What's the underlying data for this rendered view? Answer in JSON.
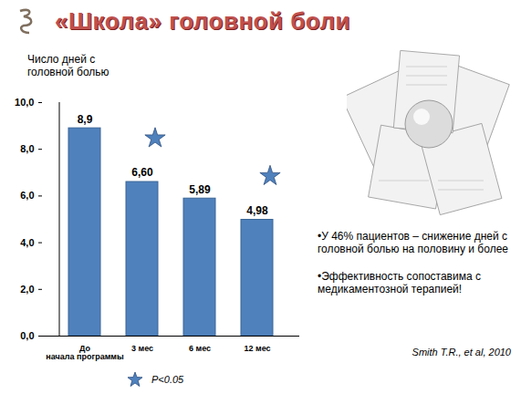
{
  "chart_data": {
    "type": "bar",
    "title": "«Школа» головной боли",
    "y_label": "Число дней с головной болью",
    "categories": [
      "До начала программы",
      "3 мес",
      "6 мес",
      "12 мес"
    ],
    "values": [
      8.9,
      6.6,
      5.89,
      4.98
    ],
    "value_labels": [
      "8,9",
      "6,60",
      "5,89",
      "4,98"
    ],
    "data_labels": true,
    "color": "#4f81bd",
    "ylim": [
      0,
      10
    ],
    "yticks": [
      {
        "value": 0,
        "label": "0,0"
      },
      {
        "value": 2,
        "label": "2,0"
      },
      {
        "value": 4,
        "label": "4,0"
      },
      {
        "value": 6,
        "label": "6,0"
      },
      {
        "value": 8,
        "label": "8,0"
      },
      {
        "value": 10,
        "label": "10,0"
      }
    ],
    "grid": false,
    "significant": [
      false,
      true,
      false,
      true
    ],
    "significance_label": "P<0.05",
    "notes": [
      "•У 46% пациентов – снижение дней с головной болью на половину и более",
      "•Эффективность сопоставима с медикаментозной терапией!"
    ],
    "source": "Smith T.R., et al, 2010"
  }
}
